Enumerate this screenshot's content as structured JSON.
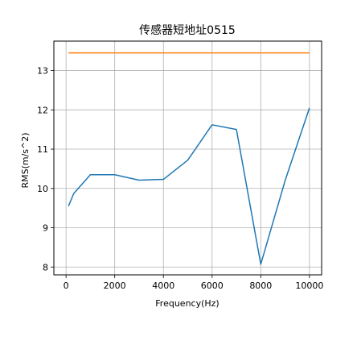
{
  "chart_data": {
    "type": "line",
    "title": "传感器短地址0515",
    "xlabel": "Frequency(Hz)",
    "ylabel": "RMS(m/s^2)",
    "xlim": [
      -500,
      10500
    ],
    "ylim": [
      7.8,
      13.75
    ],
    "x_ticks": [
      0,
      2000,
      4000,
      6000,
      8000,
      10000
    ],
    "x_tick_labels": [
      "0",
      "2000",
      "4000",
      "6000",
      "8000",
      "10000"
    ],
    "y_ticks": [
      8,
      9,
      10,
      11,
      12,
      13
    ],
    "y_tick_labels": [
      "8",
      "9",
      "10",
      "11",
      "12",
      "13"
    ],
    "grid": true,
    "series": [
      {
        "color": "#1f77b4",
        "x": [
          100,
          315,
          1000,
          2000,
          3000,
          4000,
          5000,
          6000,
          7000,
          8000,
          9000,
          10000
        ],
        "y": [
          9.55,
          9.87,
          10.35,
          10.35,
          10.21,
          10.23,
          10.72,
          11.62,
          11.5,
          8.07,
          10.2,
          12.05
        ]
      },
      {
        "color": "#ff7f0e",
        "x": [
          100,
          10000
        ],
        "y": [
          13.45,
          13.45
        ]
      }
    ]
  }
}
